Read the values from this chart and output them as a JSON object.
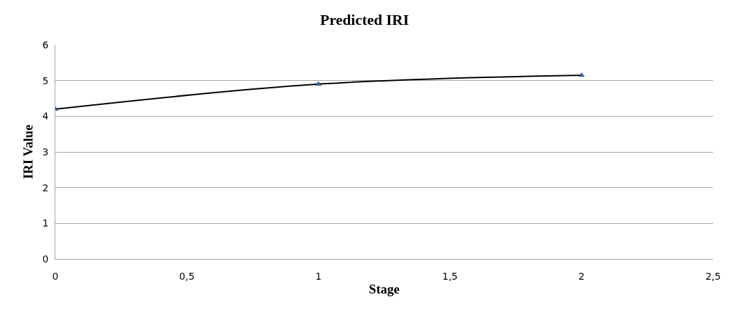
{
  "chart_data": {
    "type": "line",
    "title": "Predicted IRI",
    "xlabel": "Stage",
    "ylabel": "IRI Value",
    "x": [
      0,
      1,
      2
    ],
    "series": [
      {
        "color": "#000000",
        "values": [
          4.2,
          4.9,
          5.15
        ]
      }
    ],
    "xlim": [
      0,
      2.5
    ],
    "xticks": [
      0,
      {
        "value": 0.5,
        "label": "0,5"
      },
      1,
      {
        "value": 1.5,
        "label": "1,5"
      },
      2,
      {
        "value": 2.5,
        "label": "2,5"
      }
    ],
    "ylim": [
      0,
      6
    ],
    "yticks": [
      0,
      1,
      2,
      3,
      4,
      5,
      6
    ],
    "grid": "y",
    "marker": "triangle",
    "line_style": "solid"
  }
}
